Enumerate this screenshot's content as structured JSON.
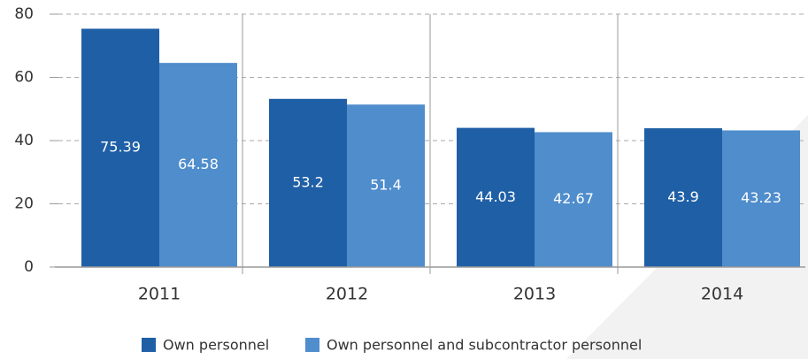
{
  "chart_data": {
    "type": "bar",
    "categories": [
      "2011",
      "2012",
      "2013",
      "2014"
    ],
    "series": [
      {
        "name": "Own personnel",
        "color": "#1f5fa6",
        "values": [
          75.39,
          53.2,
          44.03,
          43.9
        ]
      },
      {
        "name": "Own personnel and subcontractor personnel",
        "color": "#4f8dcc",
        "values": [
          64.58,
          51.4,
          42.67,
          43.23
        ]
      }
    ],
    "ylim": [
      0,
      80
    ],
    "yticks": [
      0,
      20,
      40,
      60,
      80
    ],
    "grid": true
  }
}
